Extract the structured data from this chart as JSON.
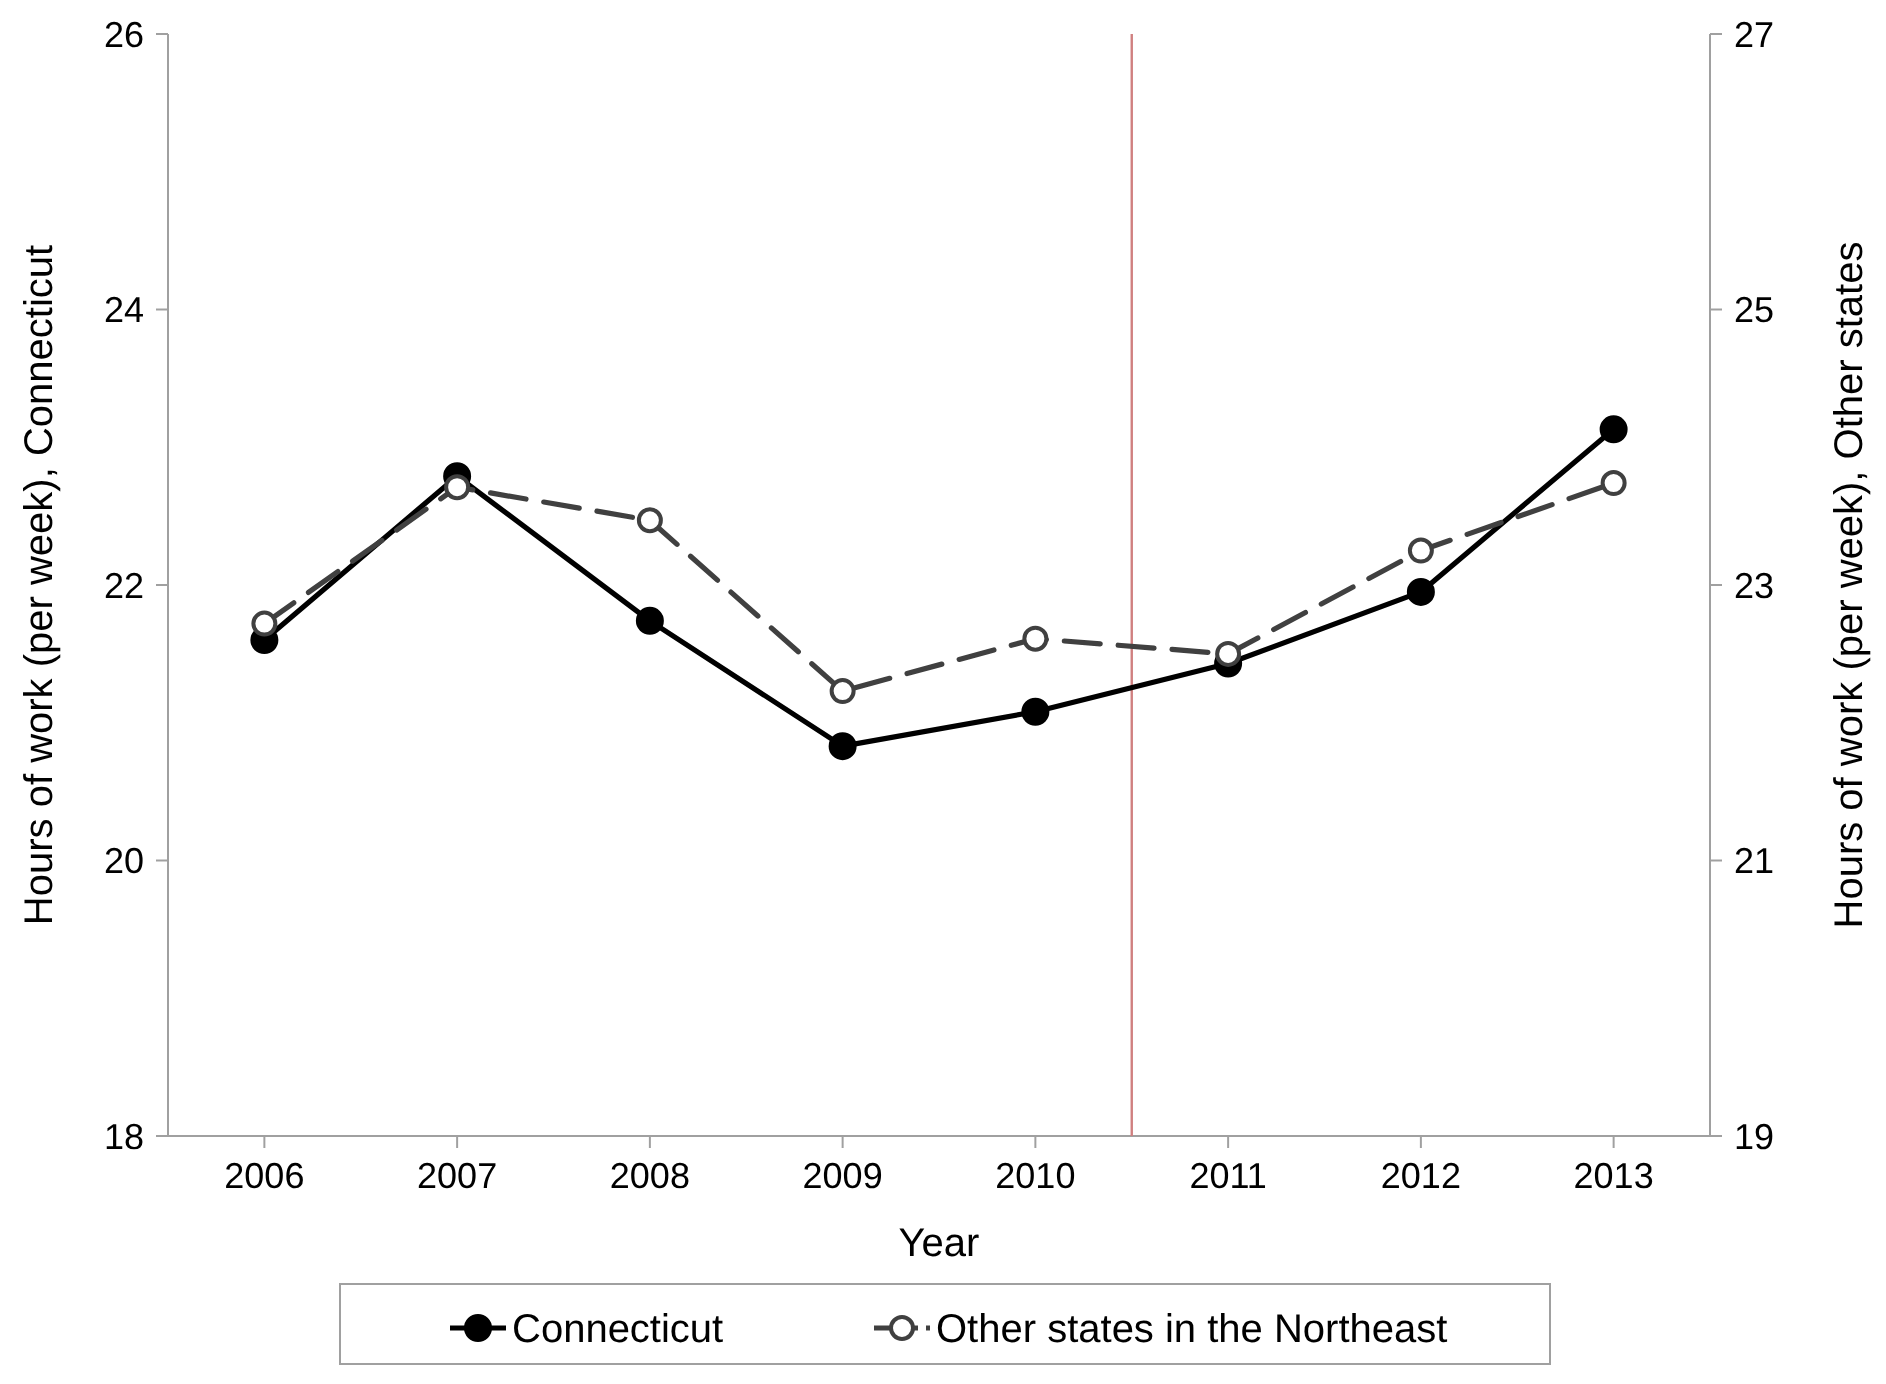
{
  "chart_data": {
    "type": "line",
    "xlabel": "Year",
    "ylabel": "Hours of work (per week), Connecticut",
    "y2label": "Hours of work (per week), Other states",
    "x": [
      2006,
      2007,
      2008,
      2009,
      2010,
      2011,
      2012,
      2013
    ],
    "xlim": [
      2005.5,
      2013.5
    ],
    "xticks": [
      2006,
      2007,
      2008,
      2009,
      2010,
      2011,
      2012,
      2013
    ],
    "ylim": [
      18,
      26
    ],
    "yticks": [
      18,
      20,
      22,
      24,
      26
    ],
    "y2lim": [
      19,
      27
    ],
    "y2ticks": [
      19,
      21,
      23,
      25,
      27
    ],
    "series": [
      {
        "name": "Connecticut",
        "color": "#000000",
        "marker": "circle",
        "line_style": "solid",
        "values": [
          21.6,
          22.79,
          21.74,
          20.83,
          21.08,
          21.43,
          21.95,
          23.13
        ]
      },
      {
        "name": "Other states in the Northeast",
        "color": "#404040",
        "marker": "circle",
        "line_style": "dashed",
        "axis": "y2",
        "values": [
          22.72,
          23.71,
          23.47,
          22.23,
          22.61,
          22.5,
          23.25,
          23.74
        ]
      }
    ],
    "ref_lines": [
      {
        "axis": "x",
        "value": 2010.5,
        "color": "#d08080"
      }
    ],
    "grid": false,
    "legend": "bottom"
  }
}
